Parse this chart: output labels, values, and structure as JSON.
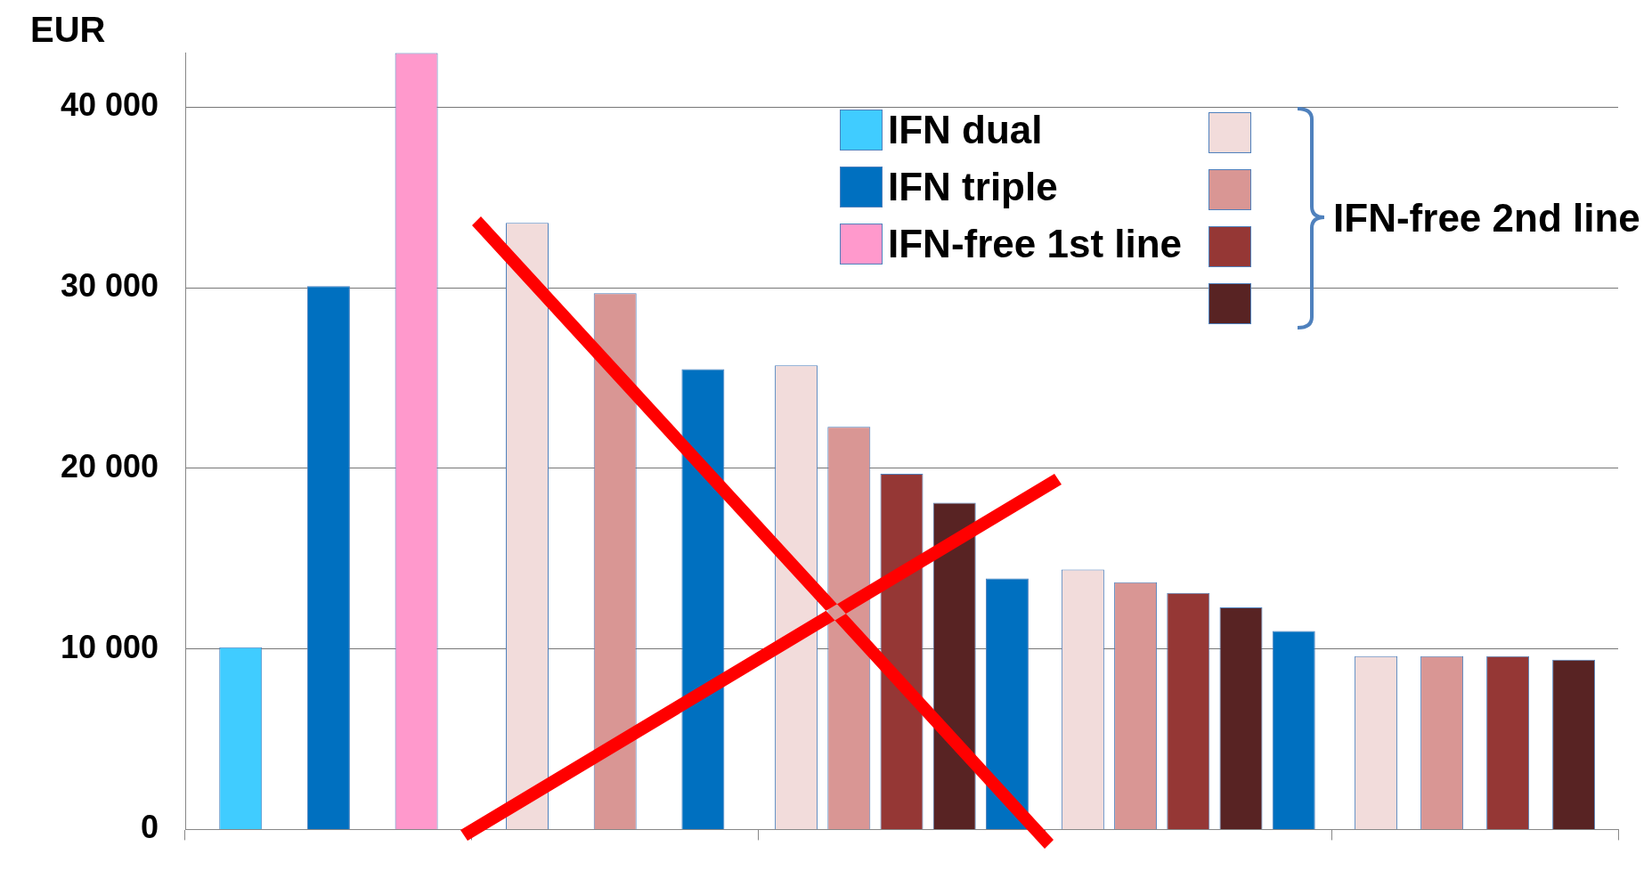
{
  "chart_data": {
    "type": "bar",
    "ylabel": "EUR",
    "legend_title": "IFN-free 2nd line",
    "categories": [
      null,
      null,
      null,
      null,
      null
    ],
    "series": [
      {
        "name": "IFN dual",
        "color": "#40ccff",
        "values": [
          10100,
          null,
          null,
          null,
          null
        ]
      },
      {
        "color": "#f2dcdb",
        "values": [
          null,
          33600,
          25700,
          14400,
          9600
        ]
      },
      {
        "color": "#d99694",
        "values": [
          null,
          29700,
          22300,
          13700,
          9600
        ]
      },
      {
        "color": "#953735",
        "values": [
          null,
          null,
          19700,
          13100,
          9600
        ]
      },
      {
        "color": "#582323",
        "values": [
          null,
          null,
          18100,
          12300,
          9400
        ]
      },
      {
        "name": "IFN triple",
        "color": "#0070c0",
        "values": [
          30100,
          25500,
          13900,
          11000,
          null
        ]
      },
      {
        "name": "IFN-free 1st line",
        "color": "#ff99cc",
        "values": [
          43000,
          null,
          null,
          null,
          null
        ]
      }
    ],
    "ylim": [
      0,
      43000
    ],
    "yticks": [
      {
        "value": 0,
        "label": "0"
      },
      {
        "value": 10000,
        "label": "10 000"
      },
      {
        "value": 20000,
        "label": "20 000"
      },
      {
        "value": 30000,
        "label": "30 000"
      },
      {
        "value": 40000,
        "label": "40 000"
      }
    ],
    "grid": "y",
    "legend": "top"
  }
}
